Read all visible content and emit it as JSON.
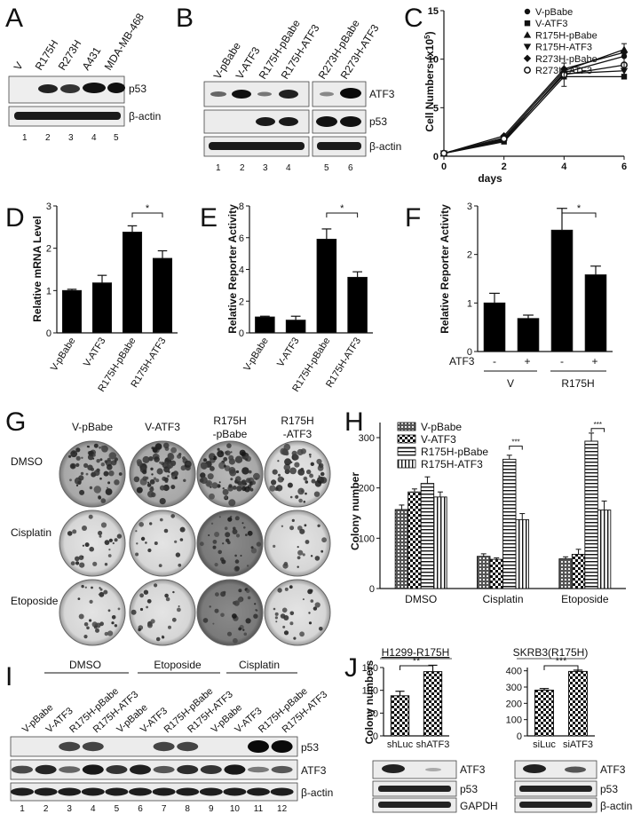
{
  "panels": {
    "A": {
      "letter": "A",
      "lanes": [
        "V",
        "R175H",
        "R273H",
        "A431",
        "MDA-MB-468"
      ],
      "lane_numbers": [
        "1",
        "2",
        "3",
        "4",
        "5"
      ],
      "bands": [
        "p53",
        "β-actin"
      ]
    },
    "B": {
      "letter": "B",
      "lanes": [
        "V-pBabe",
        "V-ATF3",
        "R175H-pBabe",
        "R175H-ATF3",
        "R273H-pBabe",
        "R273H-ATF3"
      ],
      "lane_numbers": [
        "1",
        "2",
        "3",
        "4",
        "5",
        "6"
      ],
      "bands": [
        "ATF3",
        "p53",
        "β-actin"
      ]
    },
    "C": {
      "letter": "C",
      "ylabel": "Cell Numbers (x10",
      "ylabel_sup": "5",
      "ylabel_end": ")",
      "xlabel": "days"
    },
    "D": {
      "letter": "D",
      "ylabel": "Relative mRNA  Level",
      "sig": "*"
    },
    "E": {
      "letter": "E",
      "ylabel": "Relative Reporter Activity",
      "sig": "*"
    },
    "F": {
      "letter": "F",
      "ylabel": "Relative Reporter Activity",
      "sig": "*",
      "row_label": "ATF3",
      "signs": [
        "-",
        "+",
        "-",
        "+"
      ],
      "groups": [
        "V",
        "R175H"
      ]
    },
    "G": {
      "letter": "G",
      "cols": [
        "V-pBabe",
        "V-ATF3",
        "R175H",
        "R175H"
      ],
      "cols_line2": [
        "",
        "",
        "-pBabe",
        "-ATF3"
      ],
      "rows": [
        "DMSO",
        "Cisplatin",
        "Etoposide"
      ]
    },
    "H": {
      "letter": "H",
      "ylabel": "Colony number",
      "sig": [
        "***",
        "***"
      ]
    },
    "I": {
      "letter": "I",
      "groups": [
        "DMSO",
        "Etoposide",
        "Cisplatin"
      ],
      "lanes": [
        "V-pBabe",
        "V-ATF3",
        "R175H-pBabe",
        "R175H-ATF3",
        "V-pBabe",
        "V-ATF3",
        "R175H-pBabe",
        "R175H-ATF3",
        "V-pBabe",
        "V-ATF3",
        "R175H-pBabe",
        "R175H-ATF3"
      ],
      "lane_numbers": [
        "1",
        "2",
        "3",
        "4",
        "5",
        "6",
        "7",
        "8",
        "9",
        "10",
        "11",
        "12"
      ],
      "bands": [
        "p53",
        "ATF3",
        "β-actin"
      ]
    },
    "J": {
      "letter": "J",
      "ylabel": "Colony numbers",
      "left": {
        "title": "H1299-R175H",
        "sig": "**",
        "bands": [
          "ATF3",
          "p53",
          "GAPDH"
        ]
      },
      "right": {
        "title": "SKRB3(R175H)",
        "sig": "***",
        "bands": [
          "ATF3",
          "p53",
          "β-actin"
        ]
      }
    }
  },
  "chart_data": [
    {
      "panel": "C",
      "type": "line",
      "x": [
        0,
        2,
        4,
        6
      ],
      "series": [
        {
          "name": "V-pBabe",
          "marker": "circle",
          "values": [
            0.3,
            1.6,
            8.6,
            10.3
          ]
        },
        {
          "name": "V-ATF3",
          "marker": "square",
          "values": [
            0.3,
            1.5,
            8.2,
            8.2
          ]
        },
        {
          "name": "R175H-pBabe",
          "marker": "triangle-up",
          "values": [
            0.3,
            1.9,
            8.8,
            11.0
          ]
        },
        {
          "name": "R175H-ATF3",
          "marker": "triangle-down",
          "values": [
            0.3,
            1.7,
            8.5,
            8.8
          ]
        },
        {
          "name": "R273H-pBabe",
          "marker": "diamond",
          "values": [
            0.3,
            2.1,
            9.0,
            10.7
          ]
        },
        {
          "name": "R273H-ATF3",
          "marker": "circle-open",
          "values": [
            0.3,
            1.8,
            8.4,
            9.4
          ]
        }
      ],
      "xlim": [
        0,
        6
      ],
      "ylim": [
        0,
        15
      ],
      "xticks": [
        0,
        2,
        4,
        6
      ],
      "yticks": [
        0,
        5,
        10,
        15
      ],
      "legend": "top-right"
    },
    {
      "panel": "D",
      "type": "bar",
      "categories": [
        "V-pBabe",
        "V-ATF3",
        "R175H-pBabe",
        "R175H-ATF3"
      ],
      "values": [
        1.0,
        1.18,
        2.38,
        1.76
      ],
      "errors": [
        0.03,
        0.18,
        0.15,
        0.18
      ],
      "ylim": [
        0,
        3
      ],
      "yticks": [
        0,
        1,
        2,
        3
      ]
    },
    {
      "panel": "E",
      "type": "bar",
      "categories": [
        "V-pBabe",
        "V-ATF3",
        "R175H-pBabe",
        "R175H-ATF3"
      ],
      "values": [
        1.0,
        0.8,
        5.9,
        3.5
      ],
      "errors": [
        0.05,
        0.25,
        0.65,
        0.35
      ],
      "ylim": [
        0,
        8
      ],
      "yticks": [
        0,
        2,
        4,
        6,
        8
      ]
    },
    {
      "panel": "F",
      "type": "bar",
      "categories": [
        "V -",
        "V +",
        "R175H -",
        "R175H +"
      ],
      "values": [
        1.0,
        0.68,
        2.5,
        1.58
      ],
      "errors": [
        0.2,
        0.07,
        0.45,
        0.18
      ],
      "ylim": [
        0,
        3
      ],
      "yticks": [
        0,
        1,
        2,
        3
      ]
    },
    {
      "panel": "H",
      "type": "bar",
      "categories": [
        "DMSO",
        "Cisplatin",
        "Etoposide"
      ],
      "series": [
        {
          "name": "V-pBabe",
          "values": [
            157,
            64,
            59
          ],
          "errors": [
            9,
            5,
            4
          ]
        },
        {
          "name": "V-ATF3",
          "values": [
            192,
            58,
            68
          ],
          "errors": [
            6,
            3,
            10
          ]
        },
        {
          "name": "R175H-pBabe",
          "values": [
            209,
            257,
            293
          ],
          "errors": [
            13,
            8,
            16
          ]
        },
        {
          "name": "R175H-ATF3",
          "values": [
            182,
            137,
            156
          ],
          "errors": [
            10,
            12,
            18
          ]
        }
      ],
      "ylim": [
        0,
        330
      ],
      "yticks": [
        0,
        100,
        200,
        300
      ],
      "legend": "top-left"
    },
    {
      "panel": "J-left",
      "type": "bar",
      "categories": [
        "shLuc",
        "shATF3"
      ],
      "values": [
        88,
        141
      ],
      "errors": [
        10,
        14
      ],
      "ylim": [
        0,
        150
      ],
      "yticks": [
        0,
        50,
        100,
        150
      ]
    },
    {
      "panel": "J-right",
      "type": "bar",
      "categories": [
        "siLuc",
        "siATF3"
      ],
      "values": [
        281,
        396
      ],
      "errors": [
        10,
        8
      ],
      "ylim": [
        0,
        420
      ],
      "yticks": [
        0,
        100,
        200,
        300,
        400
      ]
    }
  ]
}
